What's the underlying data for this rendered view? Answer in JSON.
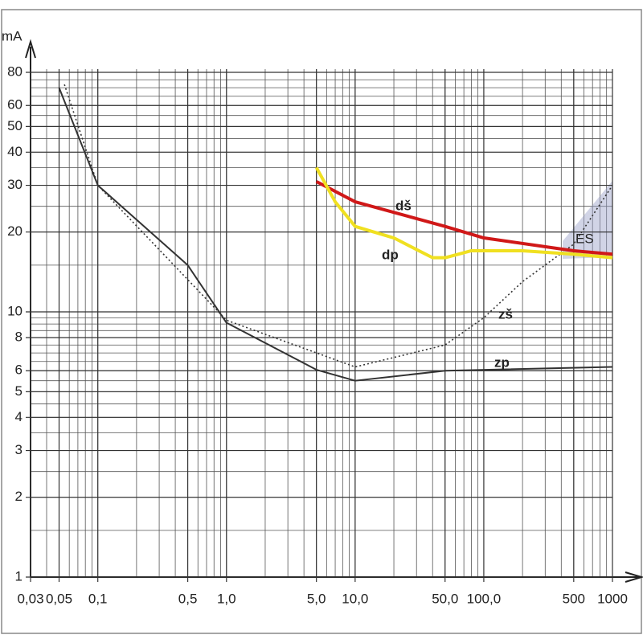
{
  "chart_data": {
    "type": "line",
    "y_label": "mA",
    "xscale": "log",
    "yscale": "log",
    "grid": true,
    "xlim": [
      0.03,
      1000
    ],
    "ylim": [
      1,
      80
    ],
    "xticks": [
      {
        "value": 0.03,
        "label": "0,03"
      },
      {
        "value": 0.05,
        "label": "0,05"
      },
      {
        "value": 0.1,
        "label": "0,1"
      },
      {
        "value": 0.5,
        "label": "0,5"
      },
      {
        "value": 1,
        "label": "1,0"
      },
      {
        "value": 5,
        "label": "5,0"
      },
      {
        "value": 10,
        "label": "10,0"
      },
      {
        "value": 50,
        "label": "50,0"
      },
      {
        "value": 100,
        "label": "100,0"
      },
      500,
      1000
    ],
    "yticks": [
      1,
      2,
      3,
      4,
      5,
      6,
      8,
      10,
      20,
      30,
      40,
      50,
      60,
      80
    ],
    "annotations": [
      "ES"
    ],
    "series": [
      {
        "name": "zp",
        "color": "#333333",
        "style": "solid",
        "x": [
          0.05,
          0.1,
          0.5,
          1,
          5,
          10,
          50,
          1000
        ],
        "values": [
          70,
          30,
          15,
          9.1,
          6.05,
          5.5,
          6,
          6.2
        ]
      },
      {
        "name": "zš",
        "color": "#333333",
        "style": "dotted",
        "x": [
          0.055,
          0.1,
          1,
          10,
          50,
          100,
          200,
          500,
          1000
        ],
        "values": [
          72,
          30,
          9.3,
          6.2,
          7.5,
          9.5,
          13,
          18,
          30
        ]
      },
      {
        "name": "dš",
        "color": "#d01818",
        "style": "solid",
        "x": [
          5,
          10,
          50,
          100,
          500,
          1000
        ],
        "values": [
          31,
          26,
          21,
          19,
          17,
          16.5
        ]
      },
      {
        "name": "dp",
        "color": "#f0e020",
        "style": "solid",
        "x": [
          5,
          7,
          10,
          20,
          40,
          50,
          80,
          200,
          500,
          1000
        ],
        "values": [
          35,
          26,
          21,
          19,
          16,
          16,
          17,
          17,
          16.5,
          16
        ]
      }
    ]
  }
}
